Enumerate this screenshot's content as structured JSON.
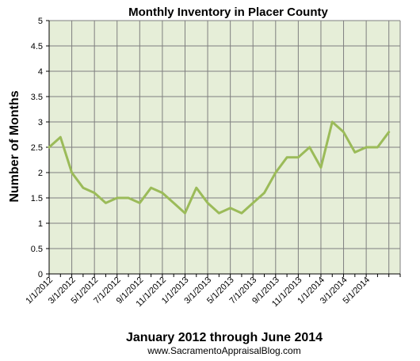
{
  "chart_data": {
    "type": "line",
    "title": "Monthly Inventory in Placer County",
    "xlabel": "January 2012 through June 2014",
    "ylabel": "Number of Months",
    "footer": "www.SacramentoAppraisalBlog.com",
    "ylim": [
      0,
      5
    ],
    "yticks": [
      "0",
      "0.5",
      "1",
      "1.5",
      "2",
      "2.5",
      "3",
      "3.5",
      "4",
      "4.5",
      "5"
    ],
    "xtick_labels": [
      "1/1/2012",
      "3/1/2012",
      "5/1/2012",
      "7/1/2012",
      "9/1/2012",
      "11/1/2012",
      "1/1/2013",
      "3/1/2013",
      "5/1/2013",
      "7/1/2013",
      "9/1/2013",
      "11/1/2013",
      "1/1/2014",
      "3/1/2014",
      "5/1/2014"
    ],
    "grid": true,
    "colors": {
      "plot_bg": "#e6eed8",
      "line": "#9bbb59",
      "grid": "#7f7f7f"
    },
    "series": [
      {
        "values": [
          2.5,
          2.7,
          2.0,
          1.7,
          1.6,
          1.4,
          1.5,
          1.5,
          1.4,
          1.7,
          1.6,
          1.4,
          1.2,
          1.7,
          1.4,
          1.2,
          1.3,
          1.2,
          1.4,
          1.6,
          2.0,
          2.3,
          2.3,
          2.5,
          2.1,
          3.0,
          2.8,
          2.4,
          2.5,
          2.5,
          2.8
        ]
      }
    ]
  }
}
